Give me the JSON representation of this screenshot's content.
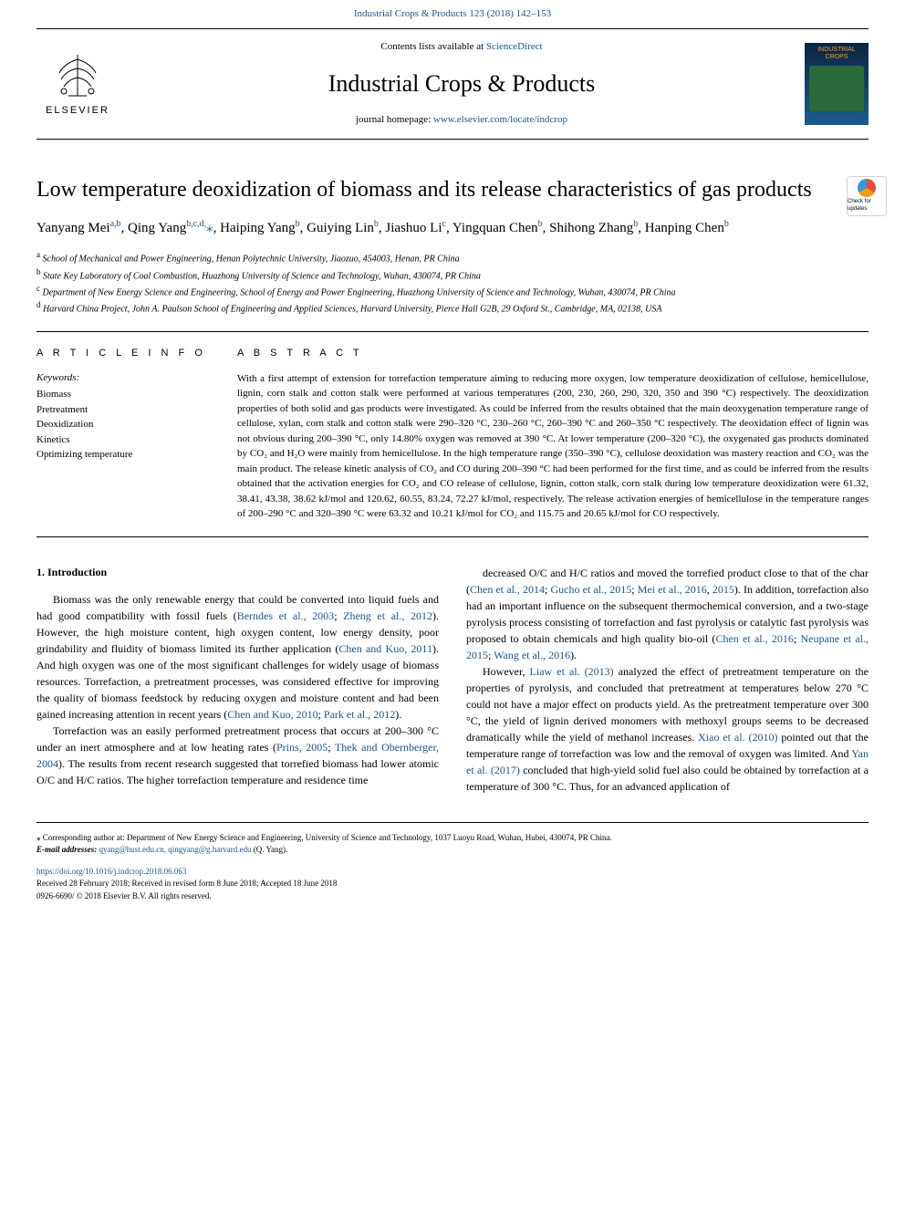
{
  "header": {
    "top_link": "Industrial Crops & Products 123 (2018) 142–153",
    "contents_text": "Contents lists available at ",
    "contents_link": "ScienceDirect",
    "journal_name": "Industrial Crops & Products",
    "homepage_text": "journal homepage: ",
    "homepage_link": "www.elsevier.com/locate/indcrop",
    "elsevier_label": "ELSEVIER",
    "cover_text": "INDUSTRIAL CROPS",
    "check_updates": "Check for updates"
  },
  "title": "Low temperature deoxidization of biomass and its release characteristics of gas products",
  "authors_html": "Yanyang Mei<sup>a,b</sup>, Qing Yang<sup>b,c,d,</sup><span class='corr'>⁎</span>, Haiping Yang<sup>b</sup>, Guiying Lin<sup>b</sup>, Jiashuo Li<sup>c</sup>, Yingquan Chen<sup>b</sup>, Shihong Zhang<sup>b</sup>, Hanping Chen<sup>b</sup>",
  "affiliations": [
    "School of Mechanical and Power Engineering, Henan Polytechnic University, Jiaozuo, 454003, Henan, PR China",
    "State Key Laboratory of Coal Combustion, Huazhong University of Science and Technology, Wuhan, 430074, PR China",
    "Department of New Energy Science and Engineering, School of Energy and Power Engineering, Huazhong University of Science and Technology, Wuhan, 430074, PR China",
    "Harvard China Project, John A. Paulson School of Engineering and Applied Sciences, Harvard University, Pierce Hall G2B, 29 Oxford St., Cambridge, MA, 02138, USA"
  ],
  "aff_labels": [
    "a",
    "b",
    "c",
    "d"
  ],
  "article_info_header": "A R T I C L E  I N F O",
  "abstract_header": "A B S T R A C T",
  "keywords_label": "Keywords:",
  "keywords": [
    "Biomass",
    "Pretreatment",
    "Deoxidization",
    "Kinetics",
    "Optimizing temperature"
  ],
  "abstract": "With a first attempt of extension for torrefaction temperature aiming to reducing more oxygen, low temperature deoxidization of cellulose, hemicellulose, lignin, corn stalk and cotton stalk were performed at various temperatures (200, 230, 260, 290, 320, 350 and 390 °C) respectively. The deoxidization properties of both solid and gas products were investigated. As could be inferred from the results obtained that the main deoxygenation temperature range of cellulose, xylan, corn stalk and cotton stalk were 290–320 °C, 230–260 °C, 260–390 °C and 260–350 °C respectively. The deoxidation effect of lignin was not obvious during 200–390 °C, only 14.80% oxygen was removed at 390 °C. At lower temperature (200–320 °C), the oxygenated gas products dominated by CO₂ and H₂O were mainly from hemicellulose. In the high temperature range (350–390 °C), cellulose deoxidation was mastery reaction and CO₂ was the main product. The release kinetic analysis of CO₂ and CO during 200–390 °C had been performed for the first time, and as could be inferred from the results obtained that the activation energies for CO₂ and CO release of cellulose, lignin, cotton stalk, corn stalk during low temperature deoxidization were 61.32, 38.41, 43.38, 38.62 kJ/mol and 120.62, 60.55, 83.24, 72.27 kJ/mol, respectively. The release activation energies of hemicellulose in the temperature ranges of 200–290 °C and 320–390 °C were 63.32 and 10.21 kJ/mol for CO₂ and 115.75 and 20.65 kJ/mol for CO respectively.",
  "intro_heading": "1. Introduction",
  "col1_paras": [
    "Biomass was the only renewable energy that could be converted into liquid fuels and had good compatibility with fossil fuels (<span class='citation'>Berndes et al., 2003</span>; <span class='citation'>Zheng et al., 2012</span>). However, the high moisture content, high oxygen content, low energy density, poor grindability and fluidity of biomass limited its further application (<span class='citation'>Chen and Kuo, 2011</span>). And high oxygen was one of the most significant challenges for widely usage of biomass resources. Torrefaction, a pretreatment processes, was considered effective for improving the quality of biomass feedstock by reducing oxygen and moisture content and had been gained increasing attention in recent years (<span class='citation'>Chen and Kuo, 2010</span>; <span class='citation'>Park et al., 2012</span>).",
    "Torrefaction was an easily performed pretreatment process that occurs at 200–300 °C under an inert atmosphere and at low heating rates (<span class='citation'>Prins, 2005</span>; <span class='citation'>Thek and Obernberger, 2004</span>). The results from recent research suggested that torrefied biomass had lower atomic O/C and H/C ratios. The higher torrefaction temperature and residence time"
  ],
  "col2_paras": [
    "decreased O/C and H/C ratios and moved the torrefied product close to that of the char (<span class='citation'>Chen et al., 2014</span>; <span class='citation'>Gucho et al., 2015</span>; <span class='citation'>Mei et al., 2016</span>, <span class='citation'>2015</span>). In addition, torrefaction also had an important influence on the subsequent thermochemical conversion, and a two-stage pyrolysis process consisting of torrefaction and fast pyrolysis or catalytic fast pyrolysis was proposed to obtain chemicals and high quality bio-oil (<span class='citation'>Chen et al., 2016</span>; <span class='citation'>Neupane et al., 2015</span>; <span class='citation'>Wang et al., 2016</span>).",
    "However, <span class='citation'>Liaw et al. (2013)</span> analyzed the effect of pretreatment temperature on the properties of pyrolysis, and concluded that pretreatment at temperatures below 270 °C could not have a major effect on products yield. As the pretreatment temperature over 300 °C, the yield of lignin derived monomers with methoxyl groups seems to be decreased dramatically while the yield of methanol increases. <span class='citation'>Xiao et al. (2010)</span> pointed out that the temperature range of torrefaction was low and the removal of oxygen was limited. And <span class='citation'>Yan et al. (2017)</span> concluded that high-yield solid fuel also could be obtained by torrefaction at a temperature of 300 °C. Thus, for an advanced application of"
  ],
  "footer": {
    "corr_note": "⁎ Corresponding author at: Department of New Energy Science and Engineering, University of Science and Technology, 1037 Luoyu Road, Wuhan, Hubei, 430074, PR China.",
    "email_label": "E-mail addresses: ",
    "emails": "qyang@hust.edu.cn, qingyang@g.harvard.edu",
    "email_author": " (Q. Yang).",
    "doi": "https://doi.org/10.1016/j.indcrop.2018.06.063",
    "received": "Received 28 February 2018; Received in revised form 8 June 2018; Accepted 18 June 2018",
    "copyright": "0926-6690/ © 2018 Elsevier B.V. All rights reserved."
  }
}
